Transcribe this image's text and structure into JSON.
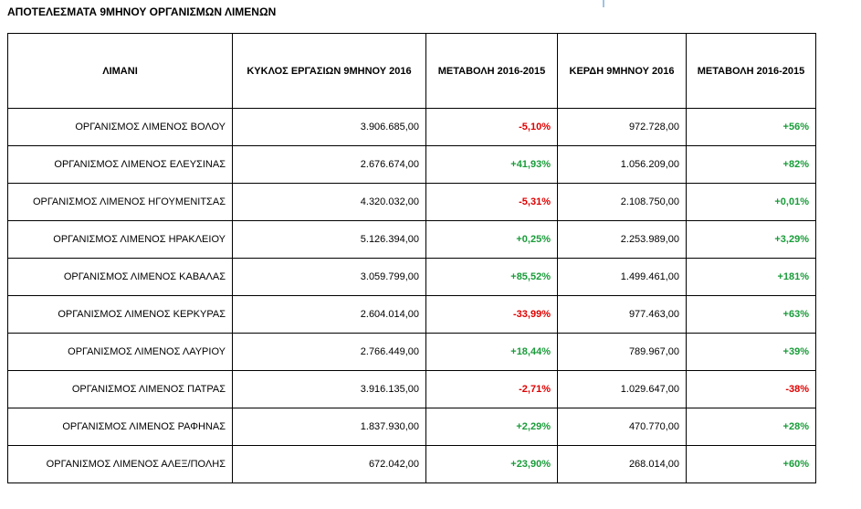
{
  "header": {
    "title": "ΑΠΟΤΕΛΕΣΜΑΤΑ 9ΜΗΝΟΥ ΟΡΓΑΝΙΣΜΩΝ ΛΙΜΕΝΩΝ"
  },
  "table": {
    "columns": [
      "ΛΙΜΑΝΙ",
      "ΚΥΚΛΟΣ ΕΡΓΑΣΙΩΝ 9ΜΗΝΟΥ 2016",
      "ΜΕΤΑΒΟΛΗ 2016-2015",
      "ΚΕΡΔΗ 9ΜΗΝΟΥ 2016",
      "ΜΕΤΑΒΟΛΗ 2016-2015"
    ],
    "rows": [
      [
        "ΟΡΓΑΝΙΣΜΟΣ ΛΙΜΕΝΟΣ ΒΟΛΟΥ",
        "3.906.685,00",
        "-5,10%",
        "972.728,00",
        "+56%"
      ],
      [
        "ΟΡΓΑΝΙΣΜΟΣ ΛΙΜΕΝΟΣ ΕΛΕΥΣΙΝΑΣ",
        "2.676.674,00",
        "+41,93%",
        "1.056.209,00",
        "+82%"
      ],
      [
        "ΟΡΓΑΝΙΣΜΟΣ ΛΙΜΕΝΟΣ ΗΓΟΥΜΕΝΙΤΣΑΣ",
        "4.320.032,00",
        "-5,31%",
        "2.108.750,00",
        "+0,01%"
      ],
      [
        "ΟΡΓΑΝΙΣΜΟΣ ΛΙΜΕΝΟΣ ΗΡΑΚΛΕΙΟΥ",
        "5.126.394,00",
        "+0,25%",
        "2.253.989,00",
        "+3,29%"
      ],
      [
        "ΟΡΓΑΝΙΣΜΟΣ ΛΙΜΕΝΟΣ ΚΑΒΑΛΑΣ",
        "3.059.799,00",
        "+85,52%",
        "1.499.461,00",
        "+181%"
      ],
      [
        "ΟΡΓΑΝΙΣΜΟΣ ΛΙΜΕΝΟΣ ΚΕΡΚΥΡΑΣ",
        "2.604.014,00",
        "-33,99%",
        "977.463,00",
        "+63%"
      ],
      [
        "ΟΡΓΑΝΙΣΜΟΣ ΛΙΜΕΝΟΣ ΛΑΥΡΙΟΥ",
        "2.766.449,00",
        "+18,44%",
        "789.967,00",
        "+39%"
      ],
      [
        "ΟΡΓΑΝΙΣΜΟΣ ΛΙΜΕΝΟΣ ΠΑΤΡΑΣ",
        "3.916.135,00",
        "-2,71%",
        "1.029.647,00",
        "-38%"
      ],
      [
        "ΟΡΓΑΝΙΣΜΟΣ ΛΙΜΕΝΟΣ ΡΑΦΗΝΑΣ",
        "1.837.930,00",
        "+2,29%",
        "470.770,00",
        "+28%"
      ],
      [
        "ΟΡΓΑΝΙΣΜΟΣ ΛΙΜΕΝΟΣ ΑΛΕΞ/ΠΟΛΗΣ",
        "672.042,00",
        "+23,90%",
        "268.014,00",
        "+60%"
      ]
    ]
  }
}
